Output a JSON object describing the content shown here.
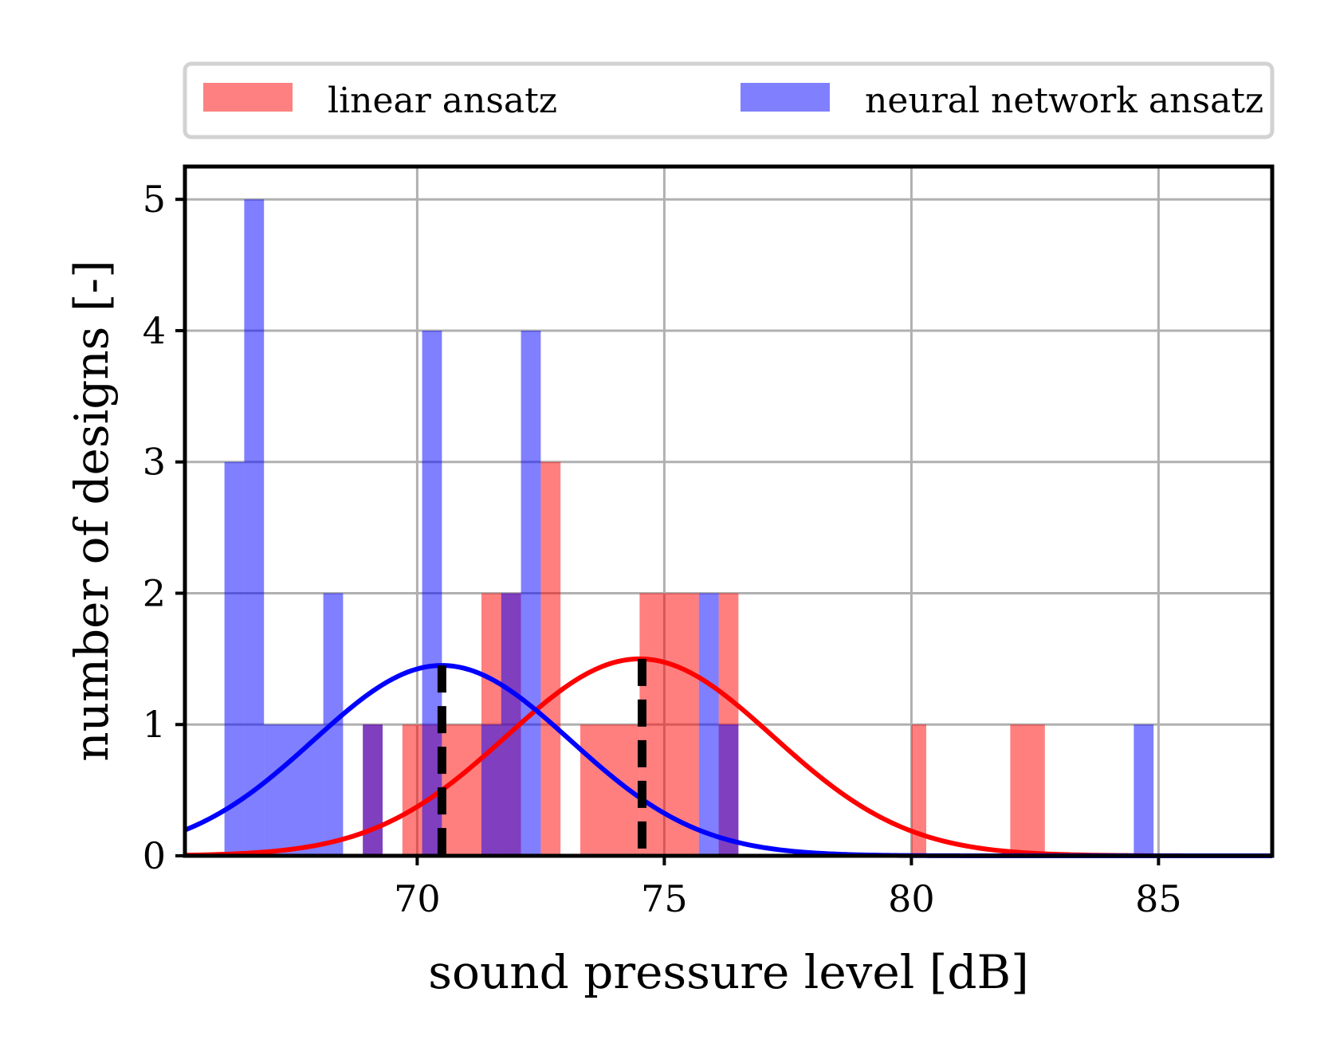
{
  "chart_data": {
    "type": "histogram",
    "title": "",
    "xlabel": "sound pressure level [dB]",
    "ylabel": "number of designs [-]",
    "xlim": [
      65.3,
      87.3
    ],
    "ylim": [
      0,
      5.25
    ],
    "xticks": [
      70,
      75,
      80,
      85
    ],
    "xtick_labels": [
      "70",
      "75",
      "80",
      "85"
    ],
    "yticks": [
      0,
      1,
      2,
      3,
      4,
      5
    ],
    "ytick_labels": [
      "0",
      "1",
      "2",
      "3",
      "4",
      "5"
    ],
    "grid": true,
    "legend_placement": "above plot, two columns",
    "series": [
      {
        "name": "linear ansatz",
        "color": "#ff0000",
        "opacity": 0.5,
        "bars": [
          {
            "x0": 68.9,
            "x1": 69.3,
            "count": 1
          },
          {
            "x0": 69.7,
            "x1": 70.5,
            "count": 1
          },
          {
            "x0": 70.5,
            "x1": 71.3,
            "count": 1
          },
          {
            "x0": 71.3,
            "x1": 72.1,
            "count": 2
          },
          {
            "x0": 72.5,
            "x1": 72.9,
            "count": 3
          },
          {
            "x0": 73.3,
            "x1": 74.5,
            "count": 1
          },
          {
            "x0": 74.5,
            "x1": 75.7,
            "count": 2
          },
          {
            "x0": 76.1,
            "x1": 76.5,
            "count": 2
          },
          {
            "x0": 80.0,
            "x1": 80.3,
            "count": 1
          },
          {
            "x0": 82.0,
            "x1": 82.7,
            "count": 1
          }
        ]
      },
      {
        "name": "neural network ansatz",
        "color": "#0000ff",
        "opacity": 0.5,
        "bars": [
          {
            "x0": 66.1,
            "x1": 66.5,
            "count": 3
          },
          {
            "x0": 66.5,
            "x1": 66.9,
            "count": 5
          },
          {
            "x0": 66.9,
            "x1": 68.1,
            "count": 1
          },
          {
            "x0": 68.1,
            "x1": 68.5,
            "count": 2
          },
          {
            "x0": 68.9,
            "x1": 69.3,
            "count": 1
          },
          {
            "x0": 70.1,
            "x1": 70.5,
            "count": 4
          },
          {
            "x0": 71.3,
            "x1": 71.7,
            "count": 1
          },
          {
            "x0": 71.7,
            "x1": 72.1,
            "count": 2
          },
          {
            "x0": 72.1,
            "x1": 72.5,
            "count": 4
          },
          {
            "x0": 75.7,
            "x1": 76.1,
            "count": 2
          },
          {
            "x0": 76.1,
            "x1": 76.5,
            "count": 1
          },
          {
            "x0": 84.5,
            "x1": 84.9,
            "count": 1
          }
        ]
      }
    ],
    "fits": [
      {
        "name": "linear ansatz fit",
        "color": "#ff0000",
        "type": "gaussian",
        "mean": 74.5,
        "sigma": 2.7,
        "peak": 1.5
      },
      {
        "name": "neural network ansatz fit",
        "color": "#0000ff",
        "type": "gaussian",
        "mean": 70.5,
        "sigma": 2.6,
        "peak": 1.45
      }
    ],
    "mean_lines": [
      {
        "series": "neural network ansatz",
        "x": 70.5,
        "style": "dashed",
        "color": "#000000"
      },
      {
        "series": "linear ansatz",
        "x": 74.55,
        "style": "dashed",
        "color": "#000000"
      }
    ]
  },
  "legend": {
    "items": [
      {
        "label": "linear ansatz",
        "color": "#ff8080"
      },
      {
        "label": "neural network ansatz",
        "color": "#8080ff"
      }
    ]
  }
}
